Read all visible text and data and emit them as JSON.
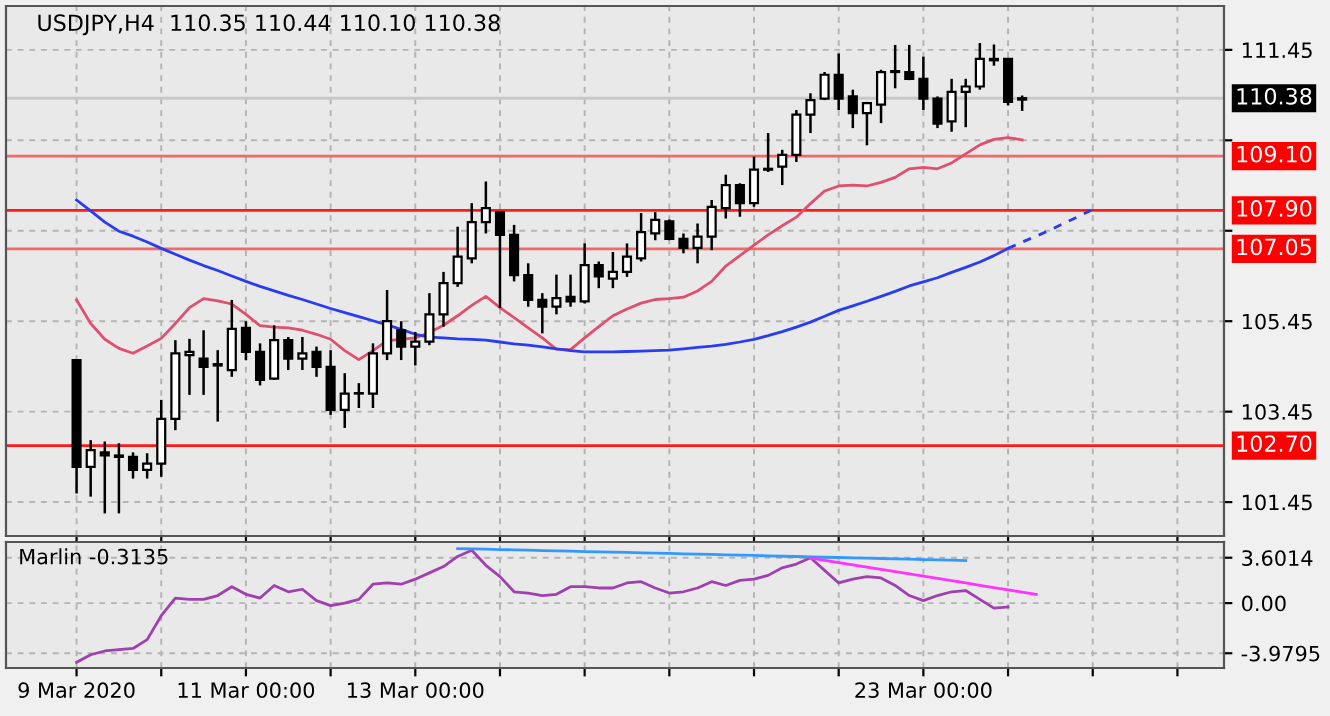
{
  "chart_data": [
    {
      "type": "candlestick",
      "title": "USDJPY,H4  110.35 110.44 110.10 110.38",
      "categories": [
        null,
        null,
        null,
        null,
        null,
        null,
        null,
        null,
        null,
        null,
        null,
        null,
        null,
        null,
        null,
        null,
        null,
        null,
        null,
        null,
        null,
        null,
        null,
        null,
        null,
        null,
        null,
        null,
        null,
        null,
        null,
        null,
        null,
        null,
        null,
        null,
        null,
        null,
        null,
        null,
        null,
        null,
        null,
        null,
        null,
        null,
        null,
        null,
        null,
        null,
        null,
        null,
        null,
        null,
        null,
        null,
        null,
        null,
        null,
        null,
        null,
        null,
        null,
        null,
        null,
        null,
        null,
        null,
        null,
        null,
        null,
        null,
        null,
        null,
        null,
        null,
        null,
        null,
        null,
        null,
        null,
        null
      ],
      "ohlc": [
        [
          104.59,
          104.6,
          101.64,
          102.23
        ],
        [
          102.23,
          102.82,
          101.57,
          102.6
        ],
        [
          102.55,
          102.79,
          101.2,
          102.48
        ],
        [
          102.48,
          102.75,
          101.2,
          102.45
        ],
        [
          102.45,
          102.55,
          101.97,
          102.16
        ],
        [
          102.16,
          102.53,
          101.97,
          102.3
        ],
        [
          102.3,
          103.71,
          102.01,
          103.29
        ],
        [
          103.29,
          105.03,
          103.04,
          104.74
        ],
        [
          104.7,
          105.06,
          103.82,
          104.77
        ],
        [
          104.62,
          105.25,
          103.82,
          104.44
        ],
        [
          104.47,
          104.81,
          103.23,
          104.5
        ],
        [
          104.37,
          105.92,
          104.22,
          105.28
        ],
        [
          105.3,
          105.45,
          104.59,
          104.77
        ],
        [
          104.77,
          104.96,
          104.03,
          104.15
        ],
        [
          104.18,
          105.36,
          104.15,
          105.03
        ],
        [
          105.03,
          105.1,
          104.37,
          104.62
        ],
        [
          104.62,
          105.1,
          104.37,
          104.74
        ],
        [
          104.77,
          104.89,
          104.22,
          104.44
        ],
        [
          104.44,
          104.81,
          103.38,
          103.49
        ],
        [
          103.49,
          104.3,
          103.09,
          103.85
        ],
        [
          103.85,
          104.08,
          103.53,
          103.86
        ],
        [
          103.85,
          104.96,
          103.53,
          104.74
        ],
        [
          104.74,
          106.14,
          104.59,
          105.45
        ],
        [
          105.25,
          105.45,
          104.59,
          104.89
        ],
        [
          104.89,
          105.21,
          104.47,
          105.0
        ],
        [
          105.0,
          106.07,
          104.92,
          105.6
        ],
        [
          105.6,
          106.54,
          105.33,
          106.29
        ],
        [
          106.29,
          107.54,
          106.21,
          106.88
        ],
        [
          106.84,
          108.06,
          106.73,
          107.64
        ],
        [
          107.64,
          108.54,
          107.39,
          107.95
        ],
        [
          107.86,
          107.86,
          105.74,
          107.36
        ],
        [
          107.36,
          107.58,
          106.33,
          106.47
        ],
        [
          106.47,
          106.73,
          105.77,
          105.92
        ],
        [
          105.92,
          106.07,
          105.18,
          105.77
        ],
        [
          105.77,
          106.48,
          105.6,
          105.96
        ],
        [
          105.99,
          106.48,
          105.77,
          105.89
        ],
        [
          105.89,
          107.17,
          105.84,
          106.69
        ],
        [
          106.69,
          106.77,
          106.18,
          106.44
        ],
        [
          106.39,
          106.98,
          106.18,
          106.54
        ],
        [
          106.54,
          107.17,
          106.43,
          106.88
        ],
        [
          106.84,
          107.84,
          106.77,
          107.42
        ],
        [
          107.39,
          107.86,
          107.24,
          107.69
        ],
        [
          107.66,
          107.7,
          107.24,
          107.27
        ],
        [
          107.27,
          107.39,
          106.95,
          107.07
        ],
        [
          107.07,
          107.61,
          106.73,
          107.32
        ],
        [
          107.32,
          108.13,
          107.02,
          107.98
        ],
        [
          107.95,
          108.69,
          107.72,
          108.46
        ],
        [
          108.46,
          108.5,
          107.76,
          108.06
        ],
        [
          108.06,
          109.09,
          107.98,
          108.8
        ],
        [
          108.8,
          109.61,
          108.75,
          108.82
        ],
        [
          108.87,
          109.24,
          108.46,
          109.13
        ],
        [
          109.13,
          110.12,
          108.97,
          110.02
        ],
        [
          110.02,
          110.49,
          109.61,
          110.34
        ],
        [
          110.37,
          110.96,
          110.34,
          110.9
        ],
        [
          110.9,
          111.37,
          110.12,
          110.37
        ],
        [
          110.42,
          110.57,
          109.72,
          110.05
        ],
        [
          110.05,
          110.3,
          109.34,
          110.27
        ],
        [
          110.24,
          111.01,
          109.83,
          110.96
        ],
        [
          110.96,
          111.56,
          110.6,
          110.98
        ],
        [
          110.96,
          111.56,
          110.78,
          110.81
        ],
        [
          110.81,
          111.3,
          110.12,
          110.37
        ],
        [
          110.37,
          110.42,
          109.72,
          109.82
        ],
        [
          109.87,
          110.81,
          109.64,
          110.52
        ],
        [
          110.52,
          110.81,
          109.74,
          110.64
        ],
        [
          110.64,
          111.6,
          110.57,
          111.25
        ],
        [
          111.22,
          111.57,
          111.1,
          111.25
        ],
        [
          111.25,
          111.25,
          110.22,
          110.3
        ],
        [
          110.35,
          110.44,
          110.1,
          110.38
        ],
        null,
        null,
        null,
        null,
        null,
        null,
        null,
        null,
        null,
        null,
        null,
        null,
        null,
        null
      ],
      "series": [
        {
          "type": "line",
          "color": "#e0506e",
          "values": [
            105.92,
            105.4,
            105.05,
            104.85,
            104.74,
            104.9,
            105.07,
            105.4,
            105.75,
            105.95,
            105.9,
            105.83,
            105.6,
            105.35,
            105.32,
            105.3,
            105.25,
            105.16,
            105.05,
            104.8,
            104.6,
            104.8,
            105.02,
            105.05,
            105.08,
            105.2,
            105.36,
            105.57,
            105.8,
            106.0,
            105.75,
            105.53,
            105.3,
            105.08,
            104.83,
            104.82,
            105.08,
            105.33,
            105.57,
            105.72,
            105.85,
            105.93,
            105.95,
            105.98,
            106.12,
            106.33,
            106.67,
            106.9,
            107.13,
            107.36,
            107.56,
            107.75,
            108.05,
            108.33,
            108.44,
            108.46,
            108.44,
            108.52,
            108.63,
            108.82,
            108.85,
            108.82,
            108.95,
            109.15,
            109.35,
            109.47,
            109.51,
            109.46,
            null,
            null,
            null,
            null,
            null,
            null,
            null,
            null,
            null,
            null,
            null,
            null,
            null,
            null
          ]
        },
        {
          "type": "line",
          "color": "#2a3cf0",
          "values": [
            108.13,
            107.89,
            107.64,
            107.44,
            107.33,
            107.2,
            107.06,
            106.93,
            106.8,
            106.68,
            106.57,
            106.45,
            106.33,
            106.22,
            106.12,
            106.02,
            105.93,
            105.83,
            105.73,
            105.64,
            105.55,
            105.46,
            105.37,
            105.27,
            105.16,
            105.1,
            105.08,
            105.06,
            105.05,
            105.03,
            104.99,
            104.95,
            104.92,
            104.88,
            104.84,
            104.8,
            104.77,
            104.77,
            104.77,
            104.78,
            104.79,
            104.8,
            104.81,
            104.84,
            104.87,
            104.9,
            104.94,
            104.99,
            105.05,
            105.13,
            105.22,
            105.32,
            105.43,
            105.56,
            105.69,
            105.79,
            105.89,
            106.0,
            106.11,
            106.23,
            106.32,
            106.41,
            106.53,
            106.64,
            106.76,
            106.9,
            107.06,
            null,
            null,
            null,
            null,
            null,
            null,
            null,
            null,
            null,
            null,
            null,
            null,
            null,
            null,
            null
          ]
        },
        {
          "type": "line",
          "color": "#2a3cf0",
          "line_style": "dashed",
          "values": [
            null,
            null,
            null,
            null,
            null,
            null,
            null,
            null,
            null,
            null,
            null,
            null,
            null,
            null,
            null,
            null,
            null,
            null,
            null,
            null,
            null,
            null,
            null,
            null,
            null,
            null,
            null,
            null,
            null,
            null,
            null,
            null,
            null,
            null,
            null,
            null,
            null,
            null,
            null,
            null,
            null,
            null,
            null,
            null,
            null,
            null,
            null,
            null,
            null,
            null,
            null,
            null,
            null,
            null,
            null,
            null,
            null,
            null,
            null,
            null,
            null,
            null,
            null,
            null,
            null,
            null,
            107.06,
            107.2,
            107.33,
            107.47,
            107.62,
            107.77,
            107.92,
            null,
            null,
            null,
            null,
            null,
            null,
            null,
            null,
            null
          ]
        }
      ],
      "ref_lines": [
        {
          "axis": "y",
          "value": 110.38,
          "label": "110.38",
          "color": "#c8c8c8"
        },
        {
          "axis": "y",
          "value": 109.1,
          "label": "109.10",
          "color": "#f06a6a"
        },
        {
          "axis": "y",
          "value": 107.9,
          "label": "107.90",
          "color": "#ff1a1a"
        },
        {
          "axis": "y",
          "value": 107.05,
          "label": "107.05",
          "color": "#f06a6a"
        },
        {
          "axis": "y",
          "value": 102.7,
          "label": "102.70",
          "color": "#ff1a1a"
        }
      ],
      "ylim": [
        100.7,
        112.42
      ],
      "yticks": [
        101.45,
        103.45,
        105.45,
        {
          "value": 107.45,
          "label": null
        },
        {
          "value": 109.45,
          "label": null
        },
        111.45
      ],
      "tick_labels": "y",
      "grid": true,
      "line_style": "solid",
      "legend": false
    },
    {
      "type": "line",
      "annotations": [
        "Marlin -0.3135"
      ],
      "categories": [
        "9 Mar 2020",
        null,
        null,
        null,
        null,
        null,
        null,
        null,
        null,
        null,
        null,
        null,
        "11 Mar 00:00",
        null,
        null,
        null,
        null,
        null,
        null,
        null,
        null,
        null,
        null,
        null,
        "13 Mar 00:00",
        null,
        null,
        null,
        null,
        null,
        null,
        null,
        null,
        null,
        null,
        null,
        null,
        null,
        null,
        null,
        null,
        null,
        null,
        null,
        null,
        null,
        null,
        null,
        null,
        null,
        null,
        null,
        null,
        null,
        null,
        null,
        null,
        null,
        null,
        null,
        "23 Mar 00:00",
        null,
        null,
        null,
        null,
        null,
        null,
        null,
        null,
        null,
        null,
        null,
        null,
        null,
        null,
        null,
        null,
        null,
        null,
        null,
        null,
        null
      ],
      "series": [
        {
          "color": "#a040b0",
          "values": [
            -4.7,
            -4.1,
            -3.8,
            -3.7,
            -3.6,
            -2.9,
            -1.0,
            0.4,
            0.3,
            0.3,
            0.6,
            1.3,
            0.7,
            0.4,
            1.4,
            0.9,
            1.1,
            0.2,
            -0.2,
            0.0,
            0.3,
            1.5,
            1.6,
            1.5,
            1.9,
            2.4,
            2.9,
            3.7,
            4.2,
            3.0,
            2.1,
            0.9,
            0.8,
            0.6,
            0.7,
            1.3,
            1.3,
            1.2,
            1.2,
            1.6,
            1.7,
            1.2,
            0.8,
            0.9,
            1.2,
            1.7,
            1.4,
            1.8,
            1.9,
            2.2,
            2.8,
            3.1,
            3.6,
            2.6,
            1.6,
            1.9,
            2.1,
            2.0,
            1.4,
            0.6,
            0.2,
            0.6,
            0.9,
            1.0,
            0.3,
            -0.4,
            -0.3,
            null,
            null,
            null,
            null,
            null,
            null,
            null,
            null,
            null,
            null,
            null,
            null,
            null,
            null,
            null
          ]
        },
        {
          "color": "#3399ff",
          "values": [
            null,
            null,
            null,
            null,
            null,
            null,
            null,
            null,
            null,
            null,
            null,
            null,
            null,
            null,
            null,
            null,
            null,
            null,
            null,
            null,
            null,
            null,
            null,
            null,
            null,
            null,
            null,
            4.33,
            4.31,
            4.28,
            4.25,
            4.23,
            4.2,
            4.17,
            4.15,
            4.12,
            4.09,
            4.07,
            4.04,
            4.02,
            3.99,
            3.96,
            3.94,
            3.91,
            3.88,
            3.86,
            3.83,
            3.8,
            3.78,
            3.75,
            3.72,
            3.7,
            3.67,
            3.64,
            3.62,
            3.59,
            3.57,
            3.54,
            3.51,
            3.49,
            3.46,
            3.43,
            3.41,
            3.38,
            null,
            null,
            null,
            null,
            null,
            null,
            null,
            null,
            null,
            null,
            null,
            null,
            null,
            null,
            null,
            null,
            null,
            null
          ]
        },
        {
          "color": "#ff33ff",
          "values": [
            null,
            null,
            null,
            null,
            null,
            null,
            null,
            null,
            null,
            null,
            null,
            null,
            null,
            null,
            null,
            null,
            null,
            null,
            null,
            null,
            null,
            null,
            null,
            null,
            null,
            null,
            null,
            null,
            null,
            null,
            null,
            null,
            null,
            null,
            null,
            null,
            null,
            null,
            null,
            null,
            null,
            null,
            null,
            null,
            null,
            null,
            null,
            null,
            null,
            null,
            null,
            null,
            3.58,
            3.4,
            3.22,
            3.04,
            2.86,
            2.68,
            2.5,
            2.32,
            2.14,
            1.96,
            1.78,
            1.6,
            1.41,
            1.23,
            1.05,
            0.87,
            0.69,
            null,
            null,
            null,
            null,
            null,
            null,
            null,
            null,
            null,
            null,
            null,
            null,
            null
          ]
        }
      ],
      "ylim": [
        -5.15,
        4.85
      ],
      "yticks": [
        3.6014,
        {
          "value": 0,
          "label": "0.00"
        },
        -3.9795
      ],
      "grid": true,
      "line_style": "solid",
      "legend": false
    }
  ]
}
